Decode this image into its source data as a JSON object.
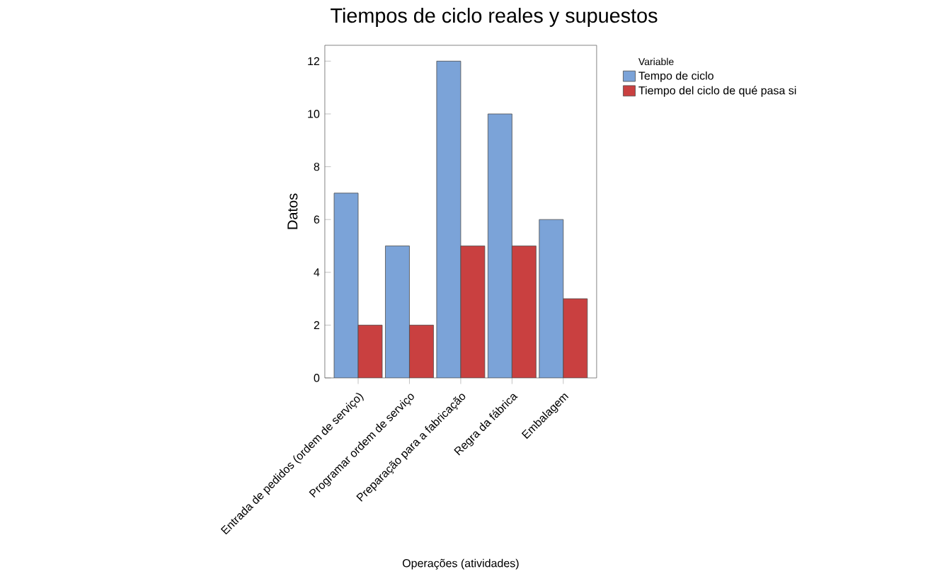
{
  "chart_data": {
    "type": "bar",
    "title": "Tiempos de ciclo reales y supuestos",
    "xlabel": "Operações (atividades)",
    "ylabel": "Datos",
    "legend_title": "Variable",
    "categories": [
      "Entrada de pedidos (ordem de serviço)",
      "Programar ordem de serviço",
      "Preparação para a fabricação",
      "Regra da fábrica",
      "Embalagem"
    ],
    "series": [
      {
        "name": "Tempo de ciclo",
        "color": "#7ba3d8",
        "values": [
          7,
          5,
          12,
          10,
          6
        ]
      },
      {
        "name": "Tiempo del ciclo de qué pasa si",
        "color": "#c94040",
        "values": [
          2,
          2,
          5,
          5,
          3
        ]
      }
    ],
    "ylim": [
      0,
      12.6
    ],
    "yticks": [
      0,
      2,
      4,
      6,
      8,
      10,
      12
    ],
    "legend": "right",
    "grid": false
  }
}
